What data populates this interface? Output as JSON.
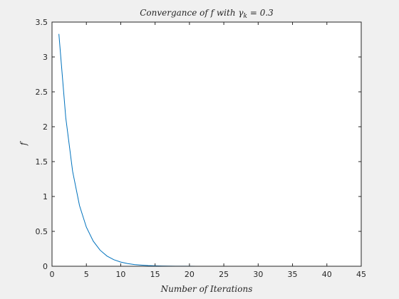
{
  "chart_data": {
    "type": "line",
    "title": "Convergance of f with γk = 0.3",
    "title_parts": {
      "prefix": "Convergance of f with γ",
      "subscript": "k",
      "suffix": " = 0.3"
    },
    "xlabel": "Number of Iterations",
    "ylabel": "f",
    "xlim": [
      0,
      45
    ],
    "ylim": [
      0,
      3.5
    ],
    "xticks": [
      "0",
      "5",
      "10",
      "15",
      "20",
      "25",
      "30",
      "35",
      "40",
      "45"
    ],
    "yticks": [
      "0",
      "0.5",
      "1",
      "1.5",
      "2",
      "2.5",
      "3",
      "3.5"
    ],
    "grid": false,
    "series_color": "#0072bd",
    "series": [
      {
        "x": [
          1,
          2,
          3,
          4,
          5,
          6,
          7,
          8,
          9,
          10,
          11,
          12,
          13,
          14,
          15,
          16,
          17,
          18,
          19,
          20,
          21,
          22,
          23,
          24,
          25,
          26,
          27,
          28,
          29,
          30,
          31,
          32,
          33,
          34,
          35,
          36,
          37,
          38,
          39,
          40,
          41
        ],
        "values": [
          3.33,
          2.13,
          1.36,
          0.87,
          0.56,
          0.36,
          0.23,
          0.146,
          0.094,
          0.06,
          0.038,
          0.024,
          0.016,
          0.01,
          0.0064,
          0.0041,
          0.0026,
          0.0017,
          0.0011,
          0.0007,
          0.0004,
          0.0003,
          0.0002,
          0.0001,
          0.0001,
          0,
          0,
          0,
          0,
          0,
          0,
          0,
          0,
          0,
          0,
          0,
          0,
          0,
          0,
          0,
          0
        ]
      }
    ]
  }
}
